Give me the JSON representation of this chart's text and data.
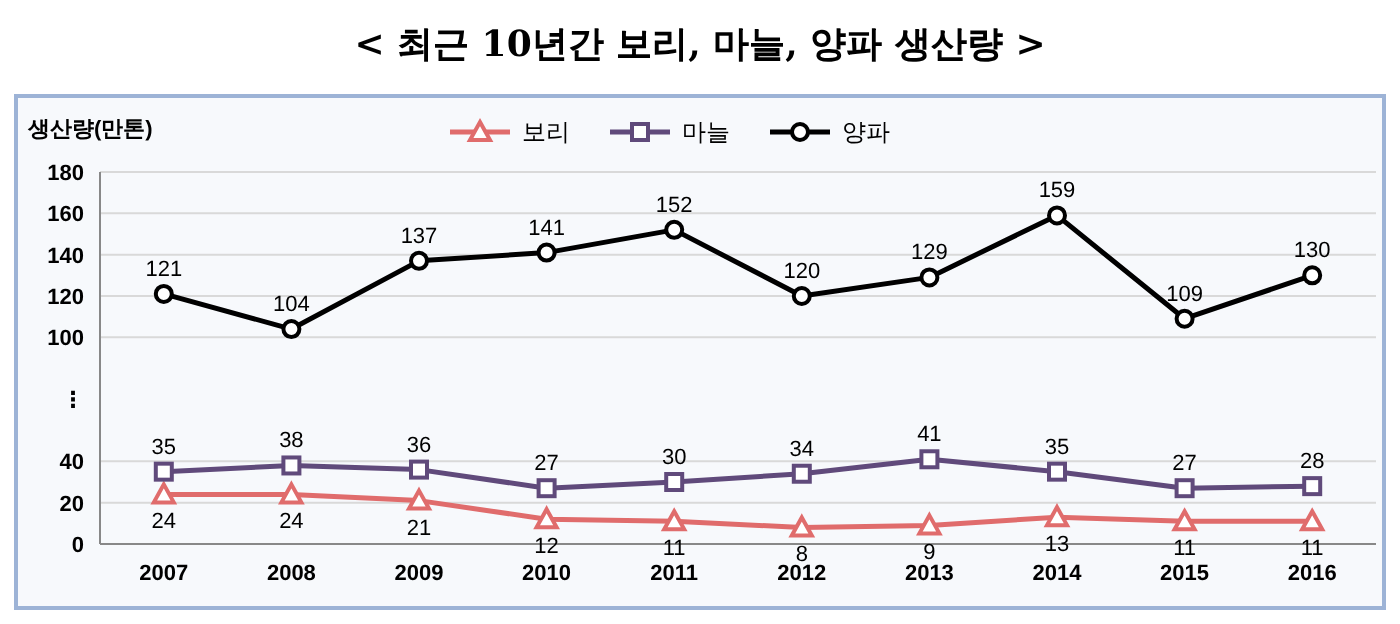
{
  "chart_data": {
    "type": "line",
    "title": "< 최근 10년간 보리, 마늘, 양파 생산량 >",
    "ylabel": "생산량(만톤)",
    "categories": [
      "2007",
      "2008",
      "2009",
      "2010",
      "2011",
      "2012",
      "2013",
      "2014",
      "2015",
      "2016"
    ],
    "series": [
      {
        "name": "보리",
        "color": "#e06c6c",
        "marker": "triangle",
        "values": [
          24,
          24,
          21,
          12,
          11,
          8,
          9,
          13,
          11,
          11
        ]
      },
      {
        "name": "마늘",
        "color": "#604a7b",
        "marker": "square",
        "values": [
          35,
          38,
          36,
          27,
          30,
          34,
          41,
          35,
          27,
          28
        ]
      },
      {
        "name": "양파",
        "color": "#000000",
        "marker": "circle",
        "values": [
          121,
          104,
          137,
          141,
          152,
          120,
          129,
          159,
          109,
          130
        ]
      }
    ],
    "ylim": [
      0,
      180
    ],
    "yticks": [
      0,
      20,
      40,
      {
        "value": 70,
        "label": "⋮"
      },
      100,
      120,
      140,
      160,
      180
    ],
    "grid": "y",
    "legend": "top",
    "data_labels": true,
    "line_style": "solid"
  }
}
